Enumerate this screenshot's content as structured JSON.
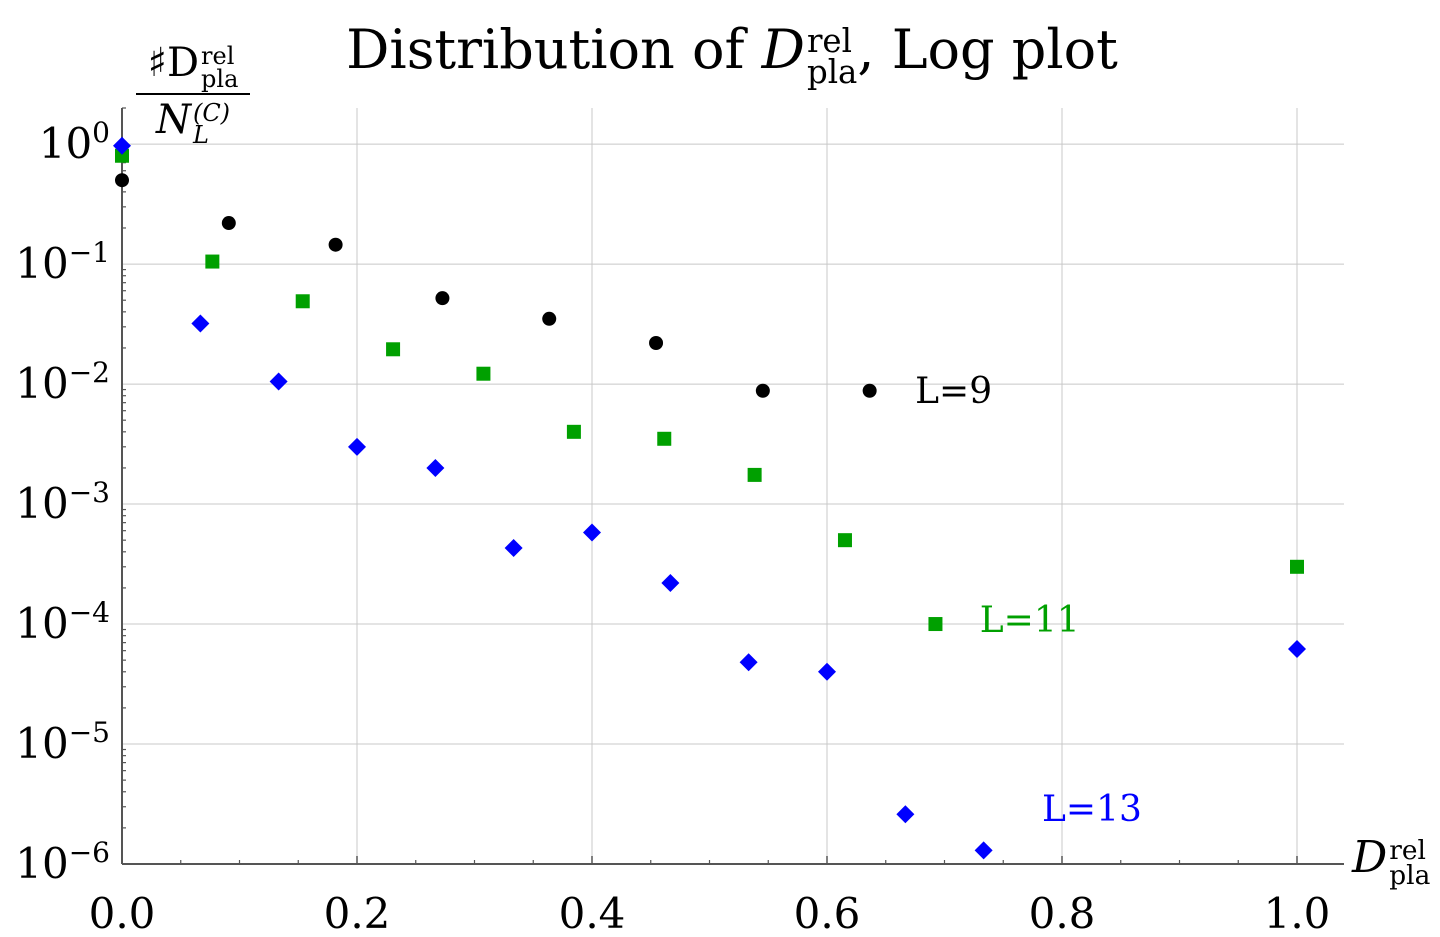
{
  "chart_data": {
    "type": "scatter",
    "title": {
      "text": "Distribution of",
      "symbol": "D",
      "symbol_sup": "rel",
      "symbol_sub": "pla",
      "suffix": ", Log plot"
    },
    "ylabel": {
      "numerator_prefix": "♯D",
      "numerator_sup": "rel",
      "numerator_sub": "pla",
      "denominator": "N",
      "denominator_sup": "(C)",
      "denominator_sub": "L"
    },
    "xlabel": {
      "symbol": "D",
      "sup": "rel",
      "sub": "pla"
    },
    "yscale": "log",
    "xlim": [
      0.0,
      1.04
    ],
    "ylim": [
      1e-06,
      2.0
    ],
    "grid": true,
    "x_ticks": [
      {
        "value": 0.0,
        "label": "0.0"
      },
      {
        "value": 0.2,
        "label": "0.2"
      },
      {
        "value": 0.4,
        "label": "0.4"
      },
      {
        "value": 0.6,
        "label": "0.6"
      },
      {
        "value": 0.8,
        "label": "0.8"
      },
      {
        "value": 1.0,
        "label": "1.0"
      }
    ],
    "y_ticks": [
      {
        "value": 1,
        "base": "10",
        "exp": "0"
      },
      {
        "value": 0.1,
        "base": "10",
        "exp": "−1"
      },
      {
        "value": 0.01,
        "base": "10",
        "exp": "−2"
      },
      {
        "value": 0.001,
        "base": "10",
        "exp": "−3"
      },
      {
        "value": 0.0001,
        "base": "10",
        "exp": "−4"
      },
      {
        "value": 1e-05,
        "base": "10",
        "exp": "−5"
      },
      {
        "value": 1e-06,
        "base": "10",
        "exp": "−6"
      }
    ],
    "series": [
      {
        "name": "L=9",
        "marker": "circle",
        "color": "#000000",
        "label_at": {
          "x": 0.675,
          "y": 0.0055
        },
        "points": [
          [
            0.0,
            0.5
          ],
          [
            0.0909,
            0.22
          ],
          [
            0.1818,
            0.145
          ],
          [
            0.2727,
            0.052
          ],
          [
            0.3636,
            0.035
          ],
          [
            0.4545,
            0.022
          ],
          [
            0.5454,
            0.0088
          ],
          [
            0.6363,
            0.0088
          ]
        ]
      },
      {
        "name": "L=11",
        "marker": "square",
        "color": "#00a000",
        "label_at": {
          "x": 0.73,
          "y": 6.8e-05
        },
        "points": [
          [
            0.0,
            0.8
          ],
          [
            0.0769,
            0.105
          ],
          [
            0.1538,
            0.049
          ],
          [
            0.2307,
            0.0195
          ],
          [
            0.3076,
            0.0122
          ],
          [
            0.3846,
            0.004
          ],
          [
            0.4615,
            0.0035
          ],
          [
            0.5384,
            0.00175
          ],
          [
            0.6153,
            0.0005
          ],
          [
            0.6923,
            0.0001
          ],
          [
            1.0,
            0.0003
          ]
        ]
      },
      {
        "name": "L=13",
        "marker": "diamond",
        "color": "#0000ff",
        "label_at": {
          "x": 0.783,
          "y": 1.8e-06
        },
        "points": [
          [
            0.0,
            0.97
          ],
          [
            0.0667,
            0.032
          ],
          [
            0.1333,
            0.0105
          ],
          [
            0.2,
            0.003
          ],
          [
            0.2667,
            0.002
          ],
          [
            0.3333,
            0.00043
          ],
          [
            0.4,
            0.00058
          ],
          [
            0.4667,
            0.00022
          ],
          [
            0.5333,
            4.8e-05
          ],
          [
            0.6,
            4e-05
          ],
          [
            0.6667,
            2.6e-06
          ],
          [
            0.7333,
            1.3e-06
          ],
          [
            1.0,
            6.2e-05
          ]
        ]
      }
    ]
  }
}
